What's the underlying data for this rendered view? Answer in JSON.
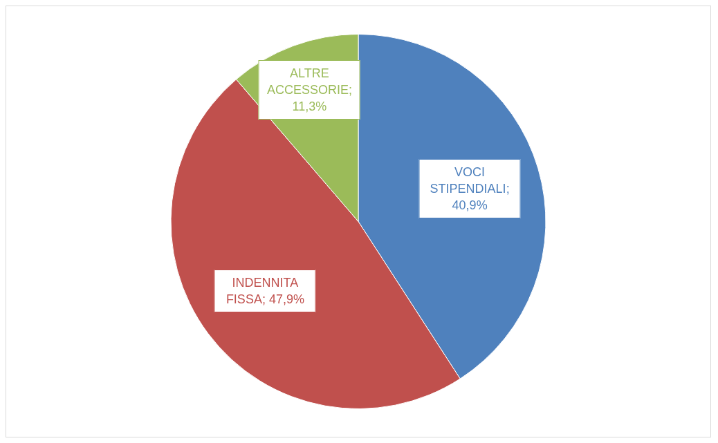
{
  "chart_data": {
    "type": "pie",
    "categories": [
      "VOCI STIPENDIALI",
      "INDENNITA FISSA",
      "ALTRE ACCESSORIE"
    ],
    "values": [
      40.9,
      47.9,
      11.3
    ],
    "value_labels": [
      "; 40,9%",
      "; 47,9%",
      "; 11,3%"
    ],
    "colors": [
      "#4f81bd",
      "#c0504d",
      "#9bbb59"
    ],
    "legend": false
  }
}
